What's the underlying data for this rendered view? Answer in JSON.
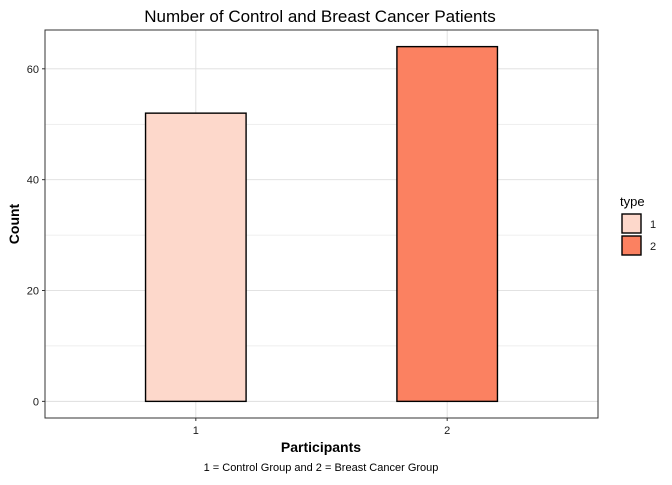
{
  "chart_data": {
    "type": "bar",
    "title": "Number of Control and Breast Cancer Patients",
    "xlabel": "Participants",
    "ylabel": "Count",
    "caption": "1 = Control Group and 2 = Breast Cancer Group",
    "categories": [
      "1",
      "2"
    ],
    "values": [
      52,
      64
    ],
    "ylim": [
      -3,
      67
    ],
    "yticks": [
      0,
      20,
      40,
      60
    ],
    "grid": true,
    "legend": {
      "title": "type",
      "placement": "right",
      "entries": [
        "1",
        "2"
      ]
    },
    "colors": {
      "1": "#fdd8cb",
      "2": "#fb8161",
      "border": "#000000",
      "grid": "#dedede",
      "panel_border": "#333333"
    }
  }
}
